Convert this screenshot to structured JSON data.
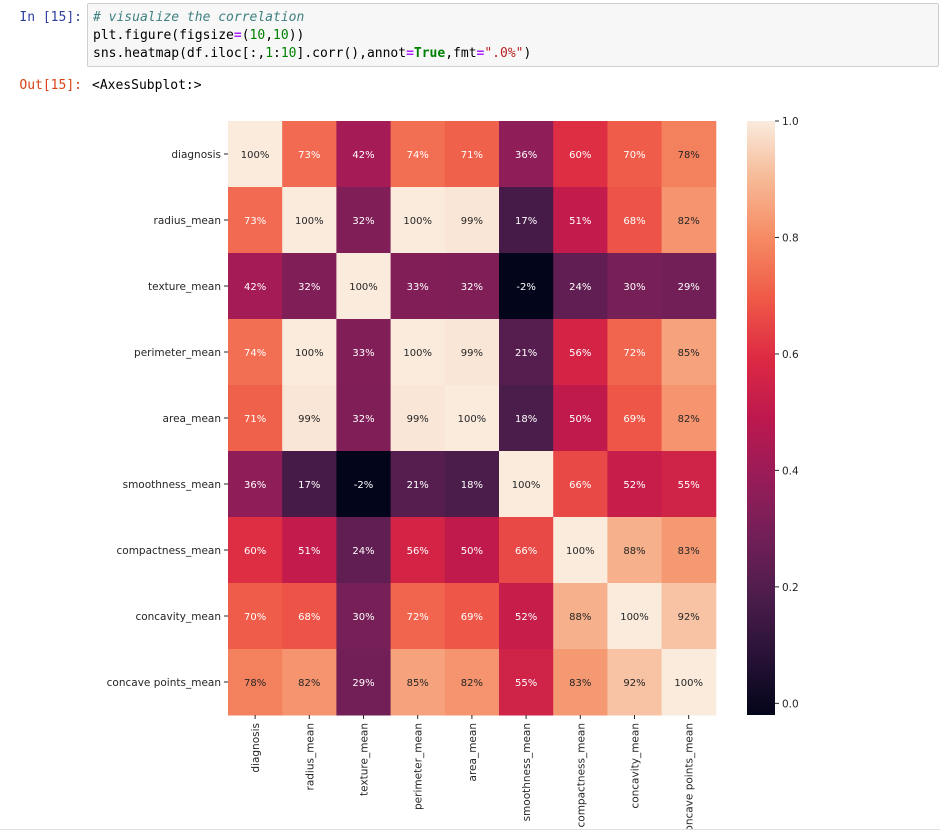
{
  "cell": {
    "in_prompt": "In [15]:",
    "code_comment": "# visualize the correlation",
    "code_line2": [
      "plt.figure(figsize",
      "=",
      "(",
      "10",
      ",",
      "10",
      "))"
    ],
    "code_line3": [
      "sns.heatmap(df.iloc[:,",
      "1",
      ":",
      "10",
      "].corr(),annot",
      "=",
      "True",
      ",fmt",
      "=",
      "\".0%\"",
      ")"
    ],
    "out_prompt": "Out[15]:",
    "out_text": "<AxesSubplot:>"
  },
  "chart_data": {
    "type": "heatmap",
    "rows": [
      "diagnosis",
      "radius_mean",
      "texture_mean",
      "perimeter_mean",
      "area_mean",
      "smoothness_mean",
      "compactness_mean",
      "concavity_mean",
      "concave points_mean"
    ],
    "cols": [
      "diagnosis",
      "radius_mean",
      "texture_mean",
      "perimeter_mean",
      "area_mean",
      "smoothness_mean",
      "compactness_mean",
      "concavity_mean",
      "concave points_mean"
    ],
    "values": [
      [
        1.0,
        0.73,
        0.42,
        0.74,
        0.71,
        0.36,
        0.6,
        0.7,
        0.78
      ],
      [
        0.73,
        1.0,
        0.32,
        1.0,
        0.99,
        0.17,
        0.51,
        0.68,
        0.82
      ],
      [
        0.42,
        0.32,
        1.0,
        0.33,
        0.32,
        -0.02,
        0.24,
        0.3,
        0.29
      ],
      [
        0.74,
        1.0,
        0.33,
        1.0,
        0.99,
        0.21,
        0.56,
        0.72,
        0.85
      ],
      [
        0.71,
        0.99,
        0.32,
        0.99,
        1.0,
        0.18,
        0.5,
        0.69,
        0.82
      ],
      [
        0.36,
        0.17,
        -0.02,
        0.21,
        0.18,
        1.0,
        0.66,
        0.52,
        0.55
      ],
      [
        0.6,
        0.51,
        0.24,
        0.56,
        0.5,
        0.66,
        1.0,
        0.88,
        0.83
      ],
      [
        0.7,
        0.68,
        0.3,
        0.72,
        0.69,
        0.52,
        0.88,
        1.0,
        0.92
      ],
      [
        0.78,
        0.82,
        0.29,
        0.85,
        0.82,
        0.55,
        0.83,
        0.92,
        1.0
      ]
    ],
    "annotations": [
      [
        "100%",
        "73%",
        "42%",
        "74%",
        "71%",
        "36%",
        "60%",
        "70%",
        "78%"
      ],
      [
        "73%",
        "100%",
        "32%",
        "100%",
        "99%",
        "17%",
        "51%",
        "68%",
        "82%"
      ],
      [
        "42%",
        "32%",
        "100%",
        "33%",
        "32%",
        "-2%",
        "24%",
        "30%",
        "29%"
      ],
      [
        "74%",
        "100%",
        "33%",
        "100%",
        "99%",
        "21%",
        "56%",
        "72%",
        "85%"
      ],
      [
        "71%",
        "99%",
        "32%",
        "99%",
        "100%",
        "18%",
        "50%",
        "69%",
        "82%"
      ],
      [
        "36%",
        "17%",
        "-2%",
        "21%",
        "18%",
        "100%",
        "66%",
        "52%",
        "55%"
      ],
      [
        "60%",
        "51%",
        "24%",
        "56%",
        "50%",
        "66%",
        "100%",
        "88%",
        "83%"
      ],
      [
        "70%",
        "68%",
        "30%",
        "72%",
        "69%",
        "52%",
        "88%",
        "100%",
        "92%"
      ],
      [
        "78%",
        "82%",
        "29%",
        "85%",
        "82%",
        "55%",
        "83%",
        "92%",
        "100%"
      ]
    ],
    "colorbar": {
      "ticks": [
        "0.0",
        "0.2",
        "0.4",
        "0.6",
        "0.8",
        "1.0"
      ],
      "tick_values": [
        0.0,
        0.2,
        0.4,
        0.6,
        0.8,
        1.0
      ],
      "vmin": -0.02,
      "vmax": 1.0
    },
    "colormap": "rocket"
  }
}
